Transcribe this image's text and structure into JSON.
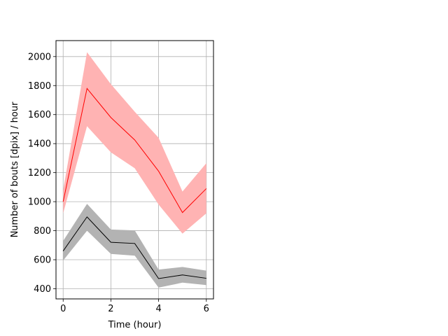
{
  "chart_data": {
    "type": "line",
    "title": "",
    "xlabel": "Time (hour)",
    "ylabel": "Number of bouts [dpix]  / hour",
    "xlim": [
      -0.3,
      6.3
    ],
    "ylim": [
      330,
      2110
    ],
    "xticks": [
      0,
      2,
      4,
      6
    ],
    "yticks": [
      400,
      600,
      800,
      1000,
      1200,
      1400,
      1600,
      1800,
      2000
    ],
    "grid": true,
    "legend": "none",
    "x": [
      0,
      1,
      2,
      3,
      4,
      5,
      6
    ],
    "series": [
      {
        "color": "#ff0000",
        "band_color": "#ffb3b3",
        "values": [
          1000,
          1780,
          1580,
          1425,
          1210,
          925,
          1090
        ],
        "lower": [
          920,
          1520,
          1340,
          1230,
          980,
          780,
          920
        ],
        "upper": [
          1080,
          2030,
          1810,
          1620,
          1440,
          1070,
          1265
        ]
      },
      {
        "color": "#000000",
        "band_color": "#b3b3b3",
        "values": [
          660,
          895,
          720,
          712,
          470,
          495,
          472
        ],
        "lower": [
          595,
          800,
          640,
          628,
          408,
          442,
          425
        ],
        "upper": [
          730,
          985,
          808,
          802,
          532,
          550,
          525
        ]
      }
    ]
  }
}
